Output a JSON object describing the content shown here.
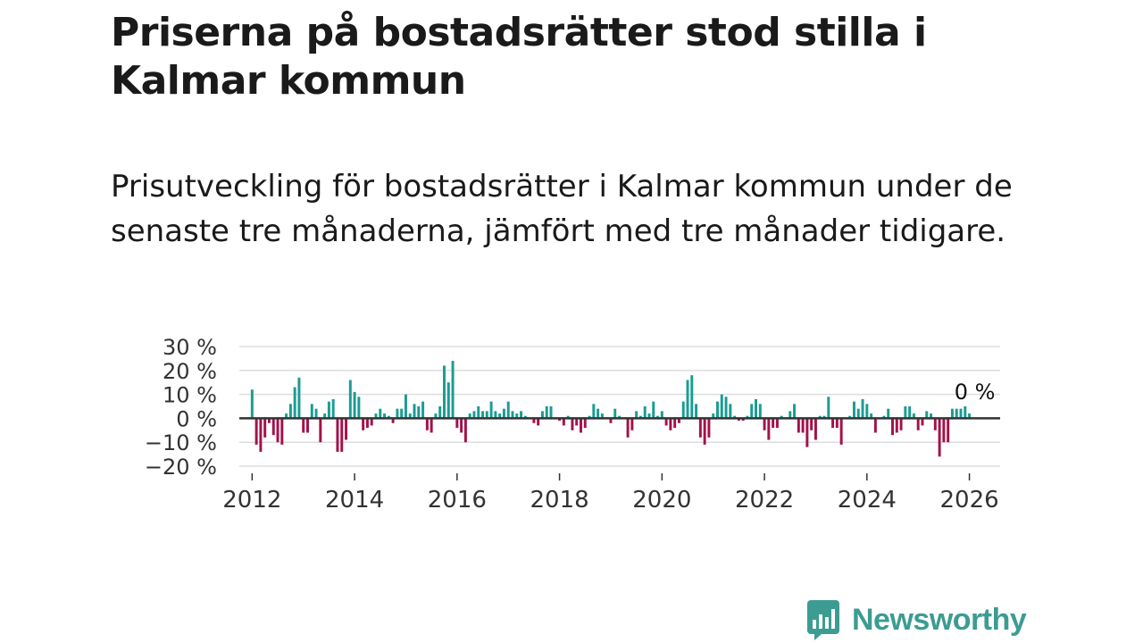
{
  "header": {
    "title": "Priserna på bostadsrätter stod stilla i Kalmar kommun",
    "subtitle": "Prisutveckling för bostadsrätter i Kalmar kommun under de senaste tre månaderna, jämfört med tre månader tidigare."
  },
  "colors": {
    "positive": "#1a9c93",
    "negative": "#a3124a",
    "grid": "#dddddd",
    "zero": "#333333",
    "brand": "#3c9c92"
  },
  "chart_data": {
    "type": "bar",
    "title": "Priserna på bostadsrätter stod stilla i Kalmar kommun",
    "xlabel": "",
    "ylabel": "",
    "unit": "%",
    "ylim": [
      -20,
      30
    ],
    "yticks": [
      30,
      20,
      10,
      0,
      -10,
      -20
    ],
    "ytick_labels": [
      "30 %",
      "20 %",
      "10 %",
      "0 %",
      "−10 %",
      "−20 %"
    ],
    "xlim": [
      2011.75,
      2026.6
    ],
    "xticks": [
      2012,
      2014,
      2016,
      2018,
      2020,
      2022,
      2024,
      2026
    ],
    "xtick_labels": [
      "2012",
      "2014",
      "2016",
      "2018",
      "2020",
      "2022",
      "2024",
      "2026"
    ],
    "start": {
      "year": 2012,
      "month": 1
    },
    "annotation": "0 %",
    "values": [
      12,
      -11,
      -14,
      -8,
      -2,
      -7,
      -10,
      -11,
      2,
      6,
      13,
      17,
      -6,
      -6,
      6,
      4,
      -10,
      2,
      7,
      8,
      -14,
      -14,
      -9,
      16,
      11,
      9,
      -5,
      -4,
      -3,
      2,
      4,
      2,
      1,
      -2,
      4,
      4,
      10,
      2,
      6,
      5,
      7,
      -5,
      -6,
      2,
      5,
      22,
      15,
      24,
      -4,
      -6,
      -10,
      2,
      3,
      5,
      3,
      3,
      7,
      3,
      2,
      4,
      7,
      3,
      2,
      3,
      1,
      0,
      -2,
      -3,
      3,
      5,
      5,
      0,
      -1,
      -3,
      1,
      -5,
      -3,
      -6,
      -4,
      1,
      6,
      4,
      2,
      0,
      -2,
      4,
      1,
      0,
      -8,
      -5,
      3,
      1,
      5,
      2,
      7,
      1,
      3,
      -3,
      -5,
      -4,
      -2,
      7,
      16,
      18,
      6,
      -8,
      -11,
      -8,
      2,
      7,
      10,
      9,
      6,
      1,
      -1,
      -1,
      1,
      6,
      8,
      6,
      -5,
      -9,
      -4,
      -4,
      1,
      0,
      3,
      6,
      -6,
      -6,
      -12,
      -5,
      -9,
      1,
      1,
      9,
      -4,
      -4,
      -11,
      0,
      1,
      7,
      4,
      8,
      6,
      2,
      -6,
      0,
      1,
      4,
      -7,
      -6,
      -5,
      5,
      5,
      2,
      -5,
      -3,
      3,
      2,
      -5,
      -16,
      -10,
      -10,
      4,
      4,
      4,
      5,
      2
    ]
  },
  "brand": {
    "name": "Newsworthy"
  }
}
